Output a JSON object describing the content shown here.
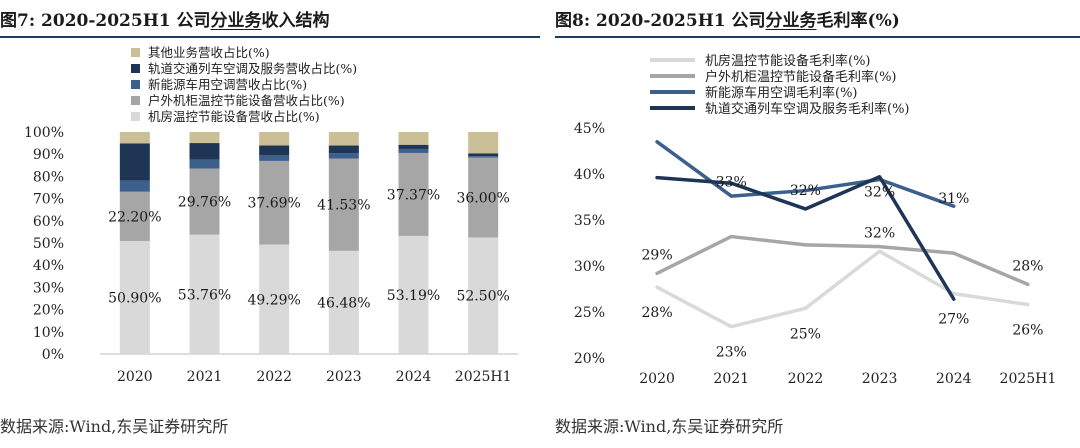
{
  "left": {
    "figure_label": "图7:",
    "title_main": "2020-2025H1 公司",
    "title_under": "分业务",
    "title_tail": "收入结构",
    "source": "数据来源:Wind,东吴证券研究所"
  },
  "right": {
    "figure_label": "图8:",
    "title_main": "2020-2025H1 公司",
    "title_under": "分业务",
    "title_tail": "毛利率(%)",
    "source": "数据来源:Wind,东吴证券研究所"
  },
  "chart_data": [
    {
      "type": "stacked-bar",
      "title": "2020-2025H1 公司分业务收入结构",
      "categories": [
        "2020",
        "2021",
        "2022",
        "2023",
        "2024",
        "2025H1"
      ],
      "ylim": [
        0,
        100
      ],
      "y_ticks": [
        "0%",
        "10%",
        "20%",
        "30%",
        "40%",
        "50%",
        "60%",
        "70%",
        "80%",
        "90%",
        "100%"
      ],
      "legend_order": [
        "其他业务营收占比(%)",
        "轨道交通列车空调及服务营收占比(%)",
        "新能源车用空调营收占比(%)",
        "户外机柜温控节能设备营收占比(%)",
        "机房温控节能设备营收占比(%)"
      ],
      "series": [
        {
          "name": "机房温控节能设备营收占比(%)",
          "color": "#d9d9d9",
          "values": [
            50.9,
            53.76,
            49.29,
            46.48,
            53.19,
            52.5
          ],
          "labels": [
            "50.90%",
            "53.76%",
            "49.29%",
            "46.48%",
            "53.19%",
            "52.50%"
          ]
        },
        {
          "name": "户外机柜温控节能设备营收占比(%)",
          "color": "#a6a6a6",
          "values": [
            22.2,
            29.76,
            37.69,
            41.53,
            37.37,
            36.0
          ],
          "labels": [
            "22.20%",
            "29.76%",
            "37.69%",
            "41.53%",
            "37.37%",
            "36.00%"
          ]
        },
        {
          "name": "新能源车用空调营收占比(%)",
          "color": "#3c5f8c",
          "values": [
            5.0,
            4.0,
            2.5,
            2.5,
            1.8,
            0.6
          ]
        },
        {
          "name": "轨道交通列车空调及服务营收占比(%)",
          "color": "#1f3556",
          "values": [
            16.8,
            7.5,
            4.5,
            3.4,
            1.9,
            1.3
          ]
        },
        {
          "name": "其他业务营收占比(%)",
          "color": "#cbbf98",
          "values": [
            5.1,
            4.98,
            6.02,
            6.09,
            5.74,
            9.6
          ]
        }
      ]
    },
    {
      "type": "line",
      "title": "2020-2025H1 公司分业务毛利率(%)",
      "categories": [
        "2020",
        "2021",
        "2022",
        "2023",
        "2024",
        "2025H1"
      ],
      "ylim": [
        20,
        45
      ],
      "y_ticks": [
        "20%",
        "25%",
        "30%",
        "35%",
        "40%",
        "45%"
      ],
      "series": [
        {
          "name": "机房温控节能设备毛利率(%)",
          "color": "#d9d9d9",
          "values": [
            27.7,
            23.4,
            25.4,
            31.6,
            27.0,
            25.8
          ],
          "labels": [
            "28%",
            "23%",
            "25%",
            "32%",
            "27%",
            "26%"
          ]
        },
        {
          "name": "户外机柜温控节能设备毛利率(%)",
          "color": "#a6a6a6",
          "values": [
            29.2,
            33.2,
            32.3,
            32.1,
            31.4,
            28.0
          ],
          "labels": [
            "29%",
            "33%",
            "32%",
            "32%",
            "31%",
            "28%"
          ]
        },
        {
          "name": "新能源车用空调毛利率(%)",
          "color": "#3c5f8c",
          "values": [
            43.5,
            37.6,
            38.2,
            39.4,
            36.5,
            null
          ]
        },
        {
          "name": "轨道交通列车空调及服务毛利率(%)",
          "color": "#1f3556",
          "values": [
            39.6,
            39.0,
            36.2,
            39.7,
            26.4,
            null
          ]
        }
      ]
    }
  ]
}
